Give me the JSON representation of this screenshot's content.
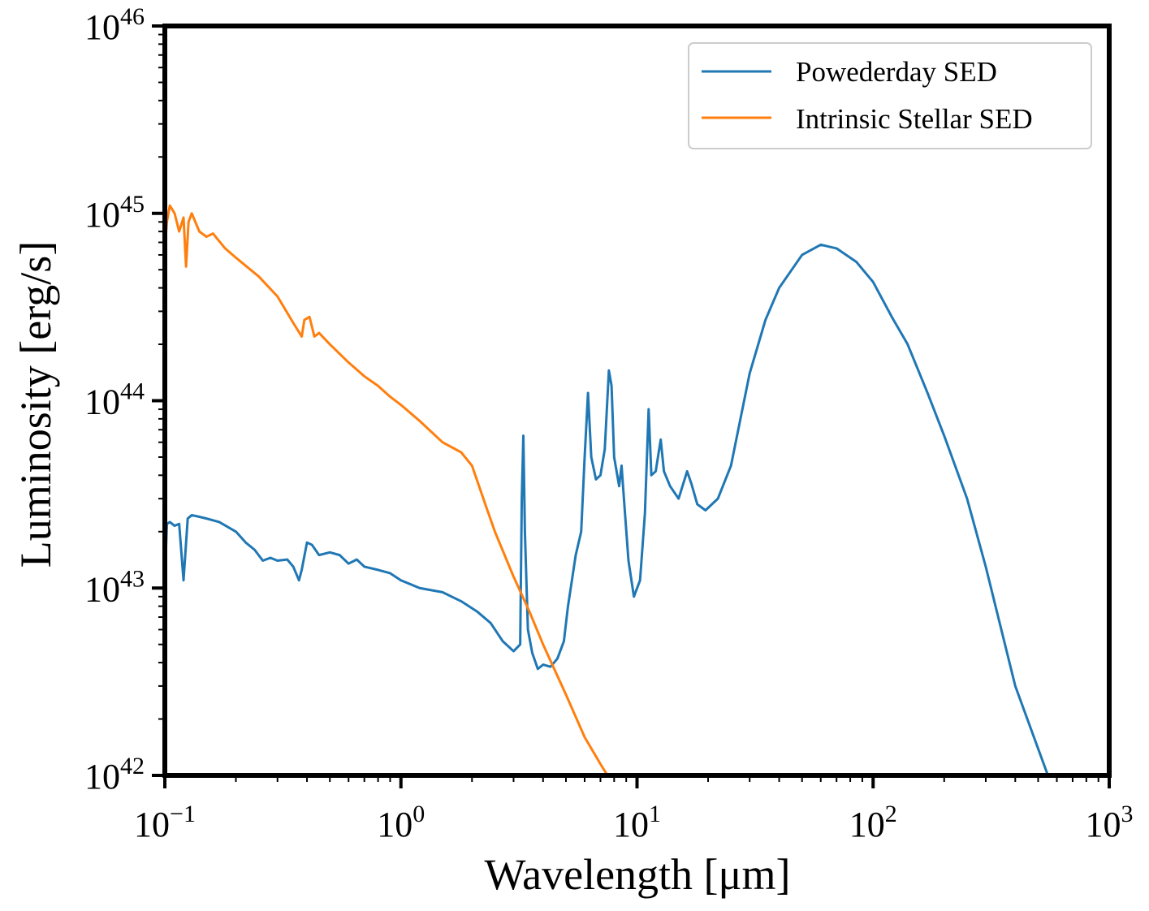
{
  "chart_data": {
    "type": "line",
    "title": "",
    "xlabel": "Wavelength [μm]",
    "ylabel": "Luminosity [erg/s]",
    "xscale": "log",
    "yscale": "log",
    "xlim": [
      0.1,
      1000
    ],
    "ylim": [
      1e+42,
      1e+46
    ],
    "grid": false,
    "legend_position": "top-right",
    "x_ticks": [
      {
        "base": "10",
        "exp": "−1",
        "value": 0.1
      },
      {
        "base": "10",
        "exp": "0",
        "value": 1
      },
      {
        "base": "10",
        "exp": "1",
        "value": 10
      },
      {
        "base": "10",
        "exp": "2",
        "value": 100
      },
      {
        "base": "10",
        "exp": "3",
        "value": 1000
      }
    ],
    "y_ticks": [
      {
        "base": "10",
        "exp": "42",
        "value": 1e+42
      },
      {
        "base": "10",
        "exp": "43",
        "value": 1e+43
      },
      {
        "base": "10",
        "exp": "44",
        "value": 1e+44
      },
      {
        "base": "10",
        "exp": "45",
        "value": 1e+45
      },
      {
        "base": "10",
        "exp": "46",
        "value": 1e+46
      }
    ],
    "series": [
      {
        "name": "Powederday SED",
        "color": "#1f77b4",
        "points": [
          [
            0.1,
            1.1e+43
          ],
          [
            0.102,
            2.2e+43
          ],
          [
            0.105,
            2.25e+43
          ],
          [
            0.11,
            2.15e+43
          ],
          [
            0.115,
            2.2e+43
          ],
          [
            0.12,
            1.1e+43
          ],
          [
            0.125,
            2.35e+43
          ],
          [
            0.13,
            2.45e+43
          ],
          [
            0.14,
            2.4e+43
          ],
          [
            0.15,
            2.35e+43
          ],
          [
            0.17,
            2.25e+43
          ],
          [
            0.2,
            2e+43
          ],
          [
            0.22,
            1.75e+43
          ],
          [
            0.24,
            1.6e+43
          ],
          [
            0.26,
            1.4e+43
          ],
          [
            0.28,
            1.45e+43
          ],
          [
            0.3,
            1.4e+43
          ],
          [
            0.33,
            1.42e+43
          ],
          [
            0.35,
            1.3e+43
          ],
          [
            0.37,
            1.1e+43
          ],
          [
            0.38,
            1.25e+43
          ],
          [
            0.4,
            1.75e+43
          ],
          [
            0.42,
            1.7e+43
          ],
          [
            0.45,
            1.5e+43
          ],
          [
            0.5,
            1.55e+43
          ],
          [
            0.55,
            1.5e+43
          ],
          [
            0.6,
            1.35e+43
          ],
          [
            0.65,
            1.42e+43
          ],
          [
            0.7,
            1.3e+43
          ],
          [
            0.8,
            1.25e+43
          ],
          [
            0.9,
            1.2e+43
          ],
          [
            1.0,
            1.1e+43
          ],
          [
            1.2,
            1e+43
          ],
          [
            1.5,
            9.5e+42
          ],
          [
            1.8,
            8.5e+42
          ],
          [
            2.1,
            7.5e+42
          ],
          [
            2.4,
            6.5e+42
          ],
          [
            2.7,
            5.2e+42
          ],
          [
            3.0,
            4.6e+42
          ],
          [
            3.2,
            5e+42
          ],
          [
            3.25,
            3e+43
          ],
          [
            3.3,
            6.5e+43
          ],
          [
            3.35,
            2e+43
          ],
          [
            3.45,
            6e+42
          ],
          [
            3.6,
            4.5e+42
          ],
          [
            3.8,
            3.7e+42
          ],
          [
            4.0,
            3.9e+42
          ],
          [
            4.3,
            3.8e+42
          ],
          [
            4.6,
            4.2e+42
          ],
          [
            4.9,
            5.2e+42
          ],
          [
            5.1,
            8e+42
          ],
          [
            5.3,
            1.1e+43
          ],
          [
            5.5,
            1.5e+43
          ],
          [
            5.8,
            2e+43
          ],
          [
            6.0,
            5e+43
          ],
          [
            6.2,
            1.1e+44
          ],
          [
            6.4,
            5e+43
          ],
          [
            6.7,
            3.8e+43
          ],
          [
            7.0,
            4e+43
          ],
          [
            7.3,
            5.5e+43
          ],
          [
            7.6,
            1.45e+44
          ],
          [
            7.8,
            1.2e+44
          ],
          [
            8.0,
            5e+43
          ],
          [
            8.4,
            3.5e+43
          ],
          [
            8.6,
            4.5e+43
          ],
          [
            8.8,
            3e+43
          ],
          [
            9.2,
            1.4e+43
          ],
          [
            9.7,
            9e+42
          ],
          [
            10.3,
            1.1e+43
          ],
          [
            10.8,
            2.5e+43
          ],
          [
            11.2,
            9e+43
          ],
          [
            11.5,
            4e+43
          ],
          [
            12.0,
            4.2e+43
          ],
          [
            12.6,
            6.2e+43
          ],
          [
            13.0,
            4.2e+43
          ],
          [
            13.8,
            3.5e+43
          ],
          [
            15.0,
            3e+43
          ],
          [
            16.3,
            4.2e+43
          ],
          [
            17.0,
            3.6e+43
          ],
          [
            18.0,
            2.8e+43
          ],
          [
            19.5,
            2.6e+43
          ],
          [
            22,
            3e+43
          ],
          [
            25,
            4.5e+43
          ],
          [
            30,
            1.4e+44
          ],
          [
            35,
            2.7e+44
          ],
          [
            40,
            4e+44
          ],
          [
            50,
            6e+44
          ],
          [
            60,
            6.8e+44
          ],
          [
            70,
            6.5e+44
          ],
          [
            85,
            5.5e+44
          ],
          [
            100,
            4.3e+44
          ],
          [
            120,
            2.8e+44
          ],
          [
            140,
            2e+44
          ],
          [
            170,
            1.1e+44
          ],
          [
            200,
            6.5e+43
          ],
          [
            250,
            3e+43
          ],
          [
            300,
            1.3e+43
          ],
          [
            400,
            3e+42
          ],
          [
            550,
            1e+42
          ]
        ]
      },
      {
        "name": "Intrinsic Stellar SED",
        "color": "#ff7f0e",
        "points": [
          [
            0.1,
            6.5e+44
          ],
          [
            0.102,
            9e+44
          ],
          [
            0.105,
            1.1e+45
          ],
          [
            0.11,
            1e+45
          ],
          [
            0.115,
            8e+44
          ],
          [
            0.12,
            9.5e+44
          ],
          [
            0.123,
            5.2e+44
          ],
          [
            0.126,
            9e+44
          ],
          [
            0.13,
            1e+45
          ],
          [
            0.14,
            8e+44
          ],
          [
            0.15,
            7.5e+44
          ],
          [
            0.16,
            7.8e+44
          ],
          [
            0.18,
            6.5e+44
          ],
          [
            0.2,
            5.8e+44
          ],
          [
            0.25,
            4.6e+44
          ],
          [
            0.3,
            3.6e+44
          ],
          [
            0.35,
            2.6e+44
          ],
          [
            0.38,
            2.2e+44
          ],
          [
            0.39,
            2.7e+44
          ],
          [
            0.41,
            2.8e+44
          ],
          [
            0.43,
            2.2e+44
          ],
          [
            0.45,
            2.3e+44
          ],
          [
            0.5,
            2e+44
          ],
          [
            0.6,
            1.6e+44
          ],
          [
            0.7,
            1.35e+44
          ],
          [
            0.8,
            1.2e+44
          ],
          [
            0.9,
            1.05e+44
          ],
          [
            1.0,
            9.5e+43
          ],
          [
            1.2,
            7.8e+43
          ],
          [
            1.5,
            6e+43
          ],
          [
            1.8,
            5.3e+43
          ],
          [
            2.0,
            4.5e+43
          ],
          [
            2.3,
            2.7e+43
          ],
          [
            2.5,
            2e+43
          ],
          [
            3.0,
            1.15e+43
          ],
          [
            3.5,
            7.5e+42
          ],
          [
            4.0,
            5e+42
          ],
          [
            5.0,
            2.7e+42
          ],
          [
            6.0,
            1.6e+42
          ],
          [
            7.0,
            1.15e+42
          ],
          [
            7.5,
            1e+42
          ]
        ]
      }
    ]
  }
}
